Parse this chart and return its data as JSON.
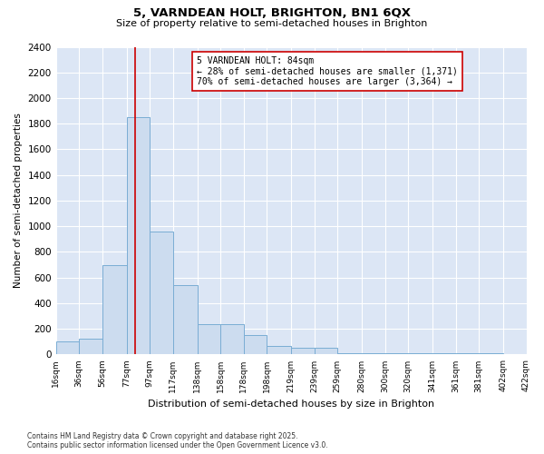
{
  "title": "5, VARNDEAN HOLT, BRIGHTON, BN1 6QX",
  "subtitle": "Size of property relative to semi-detached houses in Brighton",
  "xlabel": "Distribution of semi-detached houses by size in Brighton",
  "ylabel": "Number of semi-detached properties",
  "footer": "Contains HM Land Registry data © Crown copyright and database right 2025.\nContains public sector information licensed under the Open Government Licence v3.0.",
  "annotation_title": "5 VARNDEAN HOLT: 84sqm",
  "annotation_line1": "← 28% of semi-detached houses are smaller (1,371)",
  "annotation_line2": "70% of semi-detached houses are larger (3,364) →",
  "property_size": 84,
  "bar_color": "#ccdcef",
  "bar_edge_color": "#7aadd4",
  "vline_color": "#cc0000",
  "annotation_box_color": "#cc0000",
  "background_color": "#dce6f5",
  "tick_labels": [
    "16sqm",
    "36sqm",
    "56sqm",
    "77sqm",
    "97sqm",
    "117sqm",
    "138sqm",
    "158sqm",
    "178sqm",
    "198sqm",
    "219sqm",
    "239sqm",
    "259sqm",
    "280sqm",
    "300sqm",
    "320sqm",
    "341sqm",
    "361sqm",
    "381sqm",
    "402sqm",
    "422sqm"
  ],
  "bar_left_edges": [
    16,
    36,
    56,
    77,
    97,
    117,
    138,
    158,
    178,
    198,
    219,
    239,
    259,
    280,
    300,
    320,
    341,
    361,
    381,
    402
  ],
  "bar_widths": [
    20,
    20,
    21,
    20,
    20,
    21,
    20,
    20,
    20,
    21,
    20,
    20,
    21,
    20,
    20,
    21,
    20,
    20,
    21,
    20
  ],
  "bar_heights": [
    100,
    120,
    700,
    1850,
    960,
    540,
    240,
    240,
    150,
    65,
    50,
    50,
    10,
    10,
    10,
    10,
    10,
    10,
    10,
    5
  ],
  "ylim": [
    0,
    2400
  ],
  "yticks": [
    0,
    200,
    400,
    600,
    800,
    1000,
    1200,
    1400,
    1600,
    1800,
    2000,
    2200,
    2400
  ],
  "xlim_left": 16,
  "xlim_right": 422
}
